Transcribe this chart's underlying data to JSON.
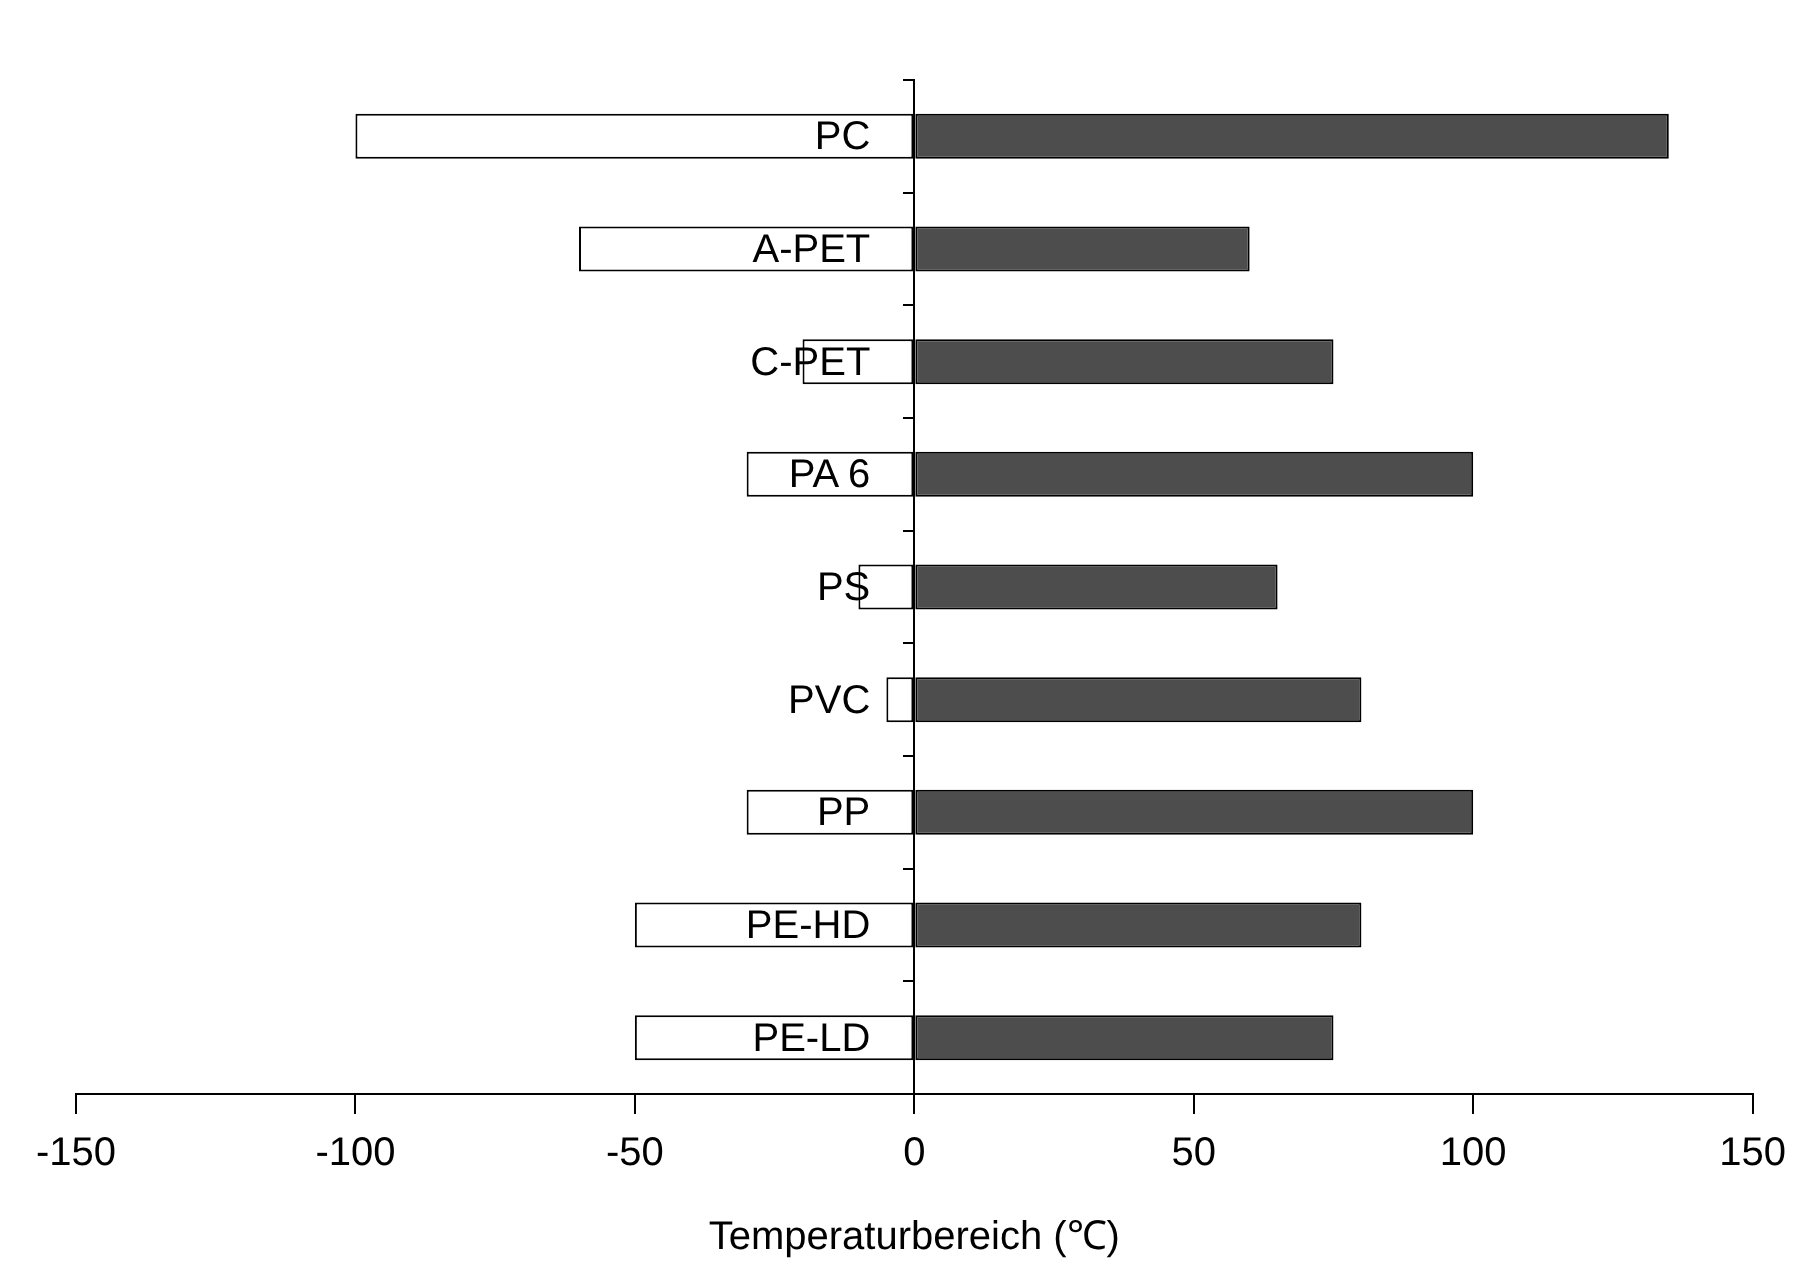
{
  "chart_data": {
    "type": "bar",
    "orientation": "horizontal",
    "stacked": true,
    "xlabel": "Temperaturbereich (℃)",
    "categories": [
      "PC",
      "A-PET",
      "C-PET",
      "PA 6",
      "PS",
      "PVC",
      "PP",
      "PE-HD",
      "PE-LD"
    ],
    "series": [
      {
        "color": "#ffffff",
        "values": [
          -100,
          -60,
          -20,
          -30,
          -10,
          -5,
          -30,
          -50,
          -50
        ]
      },
      {
        "color": "#4d4d4d",
        "values": [
          135,
          60,
          75,
          100,
          65,
          80,
          100,
          80,
          75
        ]
      }
    ],
    "xlim": [
      -150,
      150
    ],
    "xticks": [
      -150,
      -100,
      -50,
      0,
      50,
      100,
      150
    ],
    "grid": false,
    "legend": false
  }
}
